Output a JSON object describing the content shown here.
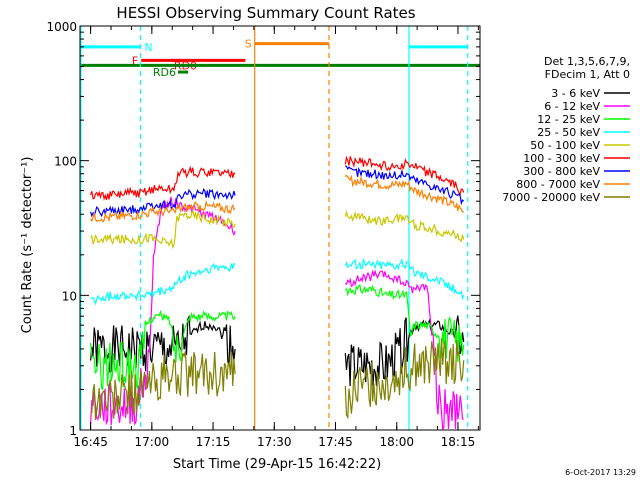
{
  "chart_data": {
    "type": "line",
    "title": "HESSI Observing Summary Count Rates",
    "xlabel": "Start Time (29-Apr-15 16:42:22)",
    "ylabel": "Count Rate (s⁻¹ detector⁻¹)",
    "y_scale": "log",
    "ylim": [
      1,
      1000
    ],
    "xlim_minutes": [
      0,
      98
    ],
    "x_ticks": [
      {
        "label": "16:45",
        "t": 2.6
      },
      {
        "label": "17:00",
        "t": 17.6
      },
      {
        "label": "17:15",
        "t": 32.6
      },
      {
        "label": "17:30",
        "t": 47.6
      },
      {
        "label": "17:45",
        "t": 62.6
      },
      {
        "label": "18:00",
        "t": 77.6
      },
      {
        "label": "18:15",
        "t": 92.6
      }
    ],
    "y_ticks": [
      {
        "label": "1",
        "v": 1
      },
      {
        "label": "10",
        "v": 10
      },
      {
        "label": "100",
        "v": 100
      },
      {
        "label": "1000",
        "v": 1000
      }
    ],
    "legend_header": [
      "Det 1,3,5,6,7,9,",
      "FDecim 1, Att 0"
    ],
    "legend_position": "right",
    "series": [
      {
        "name": "3 - 6 keV",
        "color": "#000000",
        "segments": [
          [
            [
              2.6,
              4
            ],
            [
              10,
              4
            ],
            [
              14,
              4
            ],
            [
              17.6,
              4
            ],
            [
              20,
              4
            ],
            [
              24,
              4
            ],
            [
              27,
              5
            ],
            [
              30,
              6
            ],
            [
              33,
              6
            ],
            [
              35,
              5
            ],
            [
              38,
              4
            ]
          ],
          [
            [
              65,
              3
            ],
            [
              70,
              3
            ],
            [
              75,
              3
            ],
            [
              79,
              4
            ],
            [
              80.5,
              5
            ],
            [
              82,
              6
            ],
            [
              85,
              6
            ],
            [
              88,
              6
            ],
            [
              92,
              5
            ],
            [
              94,
              4.5
            ]
          ]
        ]
      },
      {
        "name": "6 - 12 keV",
        "color": "#ff00ff",
        "segments": [
          [
            [
              2.6,
              1.5
            ],
            [
              10,
              1.5
            ],
            [
              14,
              1.6
            ],
            [
              17,
              3
            ],
            [
              18,
              20
            ],
            [
              20,
              45
            ],
            [
              22,
              50
            ],
            [
              24,
              48
            ],
            [
              26,
              45
            ],
            [
              28,
              43
            ],
            [
              30,
              40
            ],
            [
              33,
              38
            ],
            [
              35,
              35
            ],
            [
              38,
              30
            ]
          ],
          [
            [
              65,
              12
            ],
            [
              68,
              13
            ],
            [
              72,
              14
            ],
            [
              75,
              14
            ],
            [
              78,
              13
            ],
            [
              80,
              12
            ],
            [
              82,
              11
            ],
            [
              85,
              12
            ],
            [
              88,
              1.5
            ],
            [
              92,
              1.3
            ],
            [
              94,
              1.2
            ]
          ]
        ]
      },
      {
        "name": "12 - 25 keV",
        "color": "#00ff00",
        "segments": [
          [
            [
              2.6,
              3
            ],
            [
              10,
              3
            ],
            [
              15,
              3
            ],
            [
              16,
              6
            ],
            [
              18,
              7
            ],
            [
              20,
              7
            ],
            [
              22,
              6.5
            ],
            [
              23.5,
              4
            ],
            [
              25,
              5
            ],
            [
              27,
              7
            ],
            [
              30,
              7
            ],
            [
              33,
              7
            ],
            [
              35,
              7
            ],
            [
              38,
              7
            ]
          ],
          [
            [
              65,
              11
            ],
            [
              68,
              11
            ],
            [
              72,
              11
            ],
            [
              75,
              10
            ],
            [
              78,
              10
            ],
            [
              80,
              10
            ],
            [
              81,
              5
            ],
            [
              82,
              6
            ],
            [
              85,
              6
            ],
            [
              88,
              5
            ],
            [
              92,
              4.5
            ],
            [
              94,
              4.3
            ]
          ]
        ]
      },
      {
        "name": "25 - 50 keV",
        "color": "#00ffff",
        "segments": [
          [
            [
              2.6,
              9
            ],
            [
              8,
              10
            ],
            [
              12,
              10
            ],
            [
              15,
              10
            ],
            [
              17,
              10
            ],
            [
              19,
              10.5
            ],
            [
              22,
              11
            ],
            [
              23.5,
              12
            ],
            [
              26,
              14
            ],
            [
              30,
              15
            ],
            [
              33,
              16
            ],
            [
              36,
              16
            ],
            [
              38,
              17
            ]
          ],
          [
            [
              65,
              17
            ],
            [
              68,
              17
            ],
            [
              72,
              17
            ],
            [
              75,
              17
            ],
            [
              78,
              17
            ],
            [
              80,
              17
            ],
            [
              82,
              15
            ],
            [
              85,
              14
            ],
            [
              88,
              13
            ],
            [
              92,
              11
            ],
            [
              94,
              10
            ]
          ]
        ]
      },
      {
        "name": "50 - 100 keV",
        "color": "#c8c800",
        "segments": [
          [
            [
              2.6,
              26
            ],
            [
              8,
              26
            ],
            [
              12,
              26
            ],
            [
              15,
              26
            ],
            [
              17,
              27
            ],
            [
              20,
              25
            ],
            [
              23,
              24
            ],
            [
              23.8,
              38
            ],
            [
              26,
              40
            ],
            [
              30,
              38
            ],
            [
              33,
              36
            ],
            [
              36,
              35
            ],
            [
              38,
              34
            ]
          ],
          [
            [
              65,
              40
            ],
            [
              68,
              38
            ],
            [
              72,
              36
            ],
            [
              75,
              36
            ],
            [
              78,
              37
            ],
            [
              80,
              38
            ],
            [
              82,
              33
            ],
            [
              85,
              32
            ],
            [
              88,
              30
            ],
            [
              92,
              28
            ],
            [
              94,
              26
            ]
          ]
        ]
      },
      {
        "name": "100 - 300 keV",
        "color": "#ff0000",
        "segments": [
          [
            [
              2.6,
              55
            ],
            [
              8,
              55
            ],
            [
              12,
              57
            ],
            [
              15,
              58
            ],
            [
              17,
              60
            ],
            [
              20,
              62
            ],
            [
              23,
              60
            ],
            [
              24,
              80
            ],
            [
              27,
              82
            ],
            [
              30,
              82
            ],
            [
              33,
              82
            ],
            [
              36,
              80
            ],
            [
              38,
              80
            ]
          ],
          [
            [
              65,
              100
            ],
            [
              68,
              98
            ],
            [
              72,
              95
            ],
            [
              75,
              92
            ],
            [
              78,
              92
            ],
            [
              80,
              96
            ],
            [
              82,
              90
            ],
            [
              85,
              82
            ],
            [
              88,
              75
            ],
            [
              92,
              65
            ],
            [
              94,
              58
            ]
          ]
        ]
      },
      {
        "name": "300 - 800 keV",
        "color": "#0000ff",
        "segments": [
          [
            [
              2.6,
              42
            ],
            [
              8,
              42
            ],
            [
              12,
              43
            ],
            [
              15,
              45
            ],
            [
              17,
              46
            ],
            [
              20,
              47
            ],
            [
              23,
              46
            ],
            [
              24,
              55
            ],
            [
              27,
              56
            ],
            [
              30,
              57
            ],
            [
              33,
              56
            ],
            [
              36,
              55
            ],
            [
              38,
              55
            ]
          ],
          [
            [
              65,
              85
            ],
            [
              68,
              82
            ],
            [
              72,
              80
            ],
            [
              75,
              78
            ],
            [
              78,
              78
            ],
            [
              80,
              80
            ],
            [
              82,
              72
            ],
            [
              85,
              68
            ],
            [
              88,
              62
            ],
            [
              92,
              55
            ],
            [
              94,
              50
            ]
          ]
        ]
      },
      {
        "name": "800 - 7000 keV",
        "color": "#ff7f00",
        "segments": [
          [
            [
              2.6,
              38
            ],
            [
              8,
              38
            ],
            [
              12,
              39
            ],
            [
              15,
              40
            ],
            [
              17,
              41
            ],
            [
              20,
              42
            ],
            [
              23,
              41
            ],
            [
              24,
              44
            ],
            [
              27,
              45
            ],
            [
              30,
              46
            ],
            [
              33,
              45
            ],
            [
              36,
              44
            ],
            [
              38,
              44
            ]
          ],
          [
            [
              65,
              72
            ],
            [
              68,
              70
            ],
            [
              72,
              68
            ],
            [
              75,
              66
            ],
            [
              78,
              66
            ],
            [
              80,
              68
            ],
            [
              82,
              60
            ],
            [
              85,
              56
            ],
            [
              88,
              52
            ],
            [
              92,
              46
            ],
            [
              94,
              42
            ]
          ]
        ]
      },
      {
        "name": "7000 - 20000 keV",
        "color": "#7f7f00",
        "segments": [
          [
            [
              2.6,
              1.7
            ],
            [
              8,
              1.7
            ],
            [
              12,
              1.9
            ],
            [
              15,
              2
            ],
            [
              17,
              2.2
            ],
            [
              20,
              2.4
            ],
            [
              23,
              2.5
            ],
            [
              24,
              2.6
            ],
            [
              27,
              2.6
            ],
            [
              30,
              2.6
            ],
            [
              33,
              2.6
            ],
            [
              36,
              2.6
            ],
            [
              38,
              2.6
            ]
          ],
          [
            [
              65,
              1.8
            ],
            [
              68,
              2
            ],
            [
              72,
              2.2
            ],
            [
              75,
              2.4
            ],
            [
              78,
              2.6
            ],
            [
              80,
              2.8
            ],
            [
              82,
              3
            ],
            [
              85,
              3
            ],
            [
              88,
              3.2
            ],
            [
              92,
              3.3
            ],
            [
              94,
              3.3
            ]
          ]
        ]
      }
    ],
    "flags": [
      {
        "label": "N",
        "color": "#00ffff",
        "y": 700,
        "segments": [
          [
            0,
            14.8
          ],
          [
            80.6,
            95
          ]
        ]
      },
      {
        "label": "F",
        "color": "#ff0000",
        "y": 555,
        "segments": [
          [
            15,
            40.5
          ]
        ]
      },
      {
        "label": "RD0",
        "color": "#ff0000",
        "y": 555,
        "segments": [
          [
            22.5,
            25
          ]
        ]
      },
      {
        "label": "S",
        "color": "#ff7f00",
        "y": 740,
        "segments": [
          [
            42.8,
            61
          ]
        ]
      },
      {
        "label": "RD6",
        "color": "#008000",
        "y": 455,
        "segments": [
          [
            24,
            26.5
          ]
        ]
      },
      {
        "label": "",
        "color": "#008000",
        "y": 510,
        "segments": [
          [
            0,
            98
          ]
        ]
      }
    ],
    "vlines": [
      {
        "t": 0.2,
        "color": "#00ffff",
        "dash": false
      },
      {
        "t": 14.8,
        "color": "#00ffff",
        "dash": true
      },
      {
        "t": 80.6,
        "color": "#00ffff",
        "dash": false
      },
      {
        "t": 95,
        "color": "#00ffff",
        "dash": true
      },
      {
        "t": 42.8,
        "color": "#ff7f00",
        "dash": false
      },
      {
        "t": 61,
        "color": "#ff7f00",
        "dash": true
      }
    ]
  },
  "timestamp": "6-Oct-2017 13:29"
}
